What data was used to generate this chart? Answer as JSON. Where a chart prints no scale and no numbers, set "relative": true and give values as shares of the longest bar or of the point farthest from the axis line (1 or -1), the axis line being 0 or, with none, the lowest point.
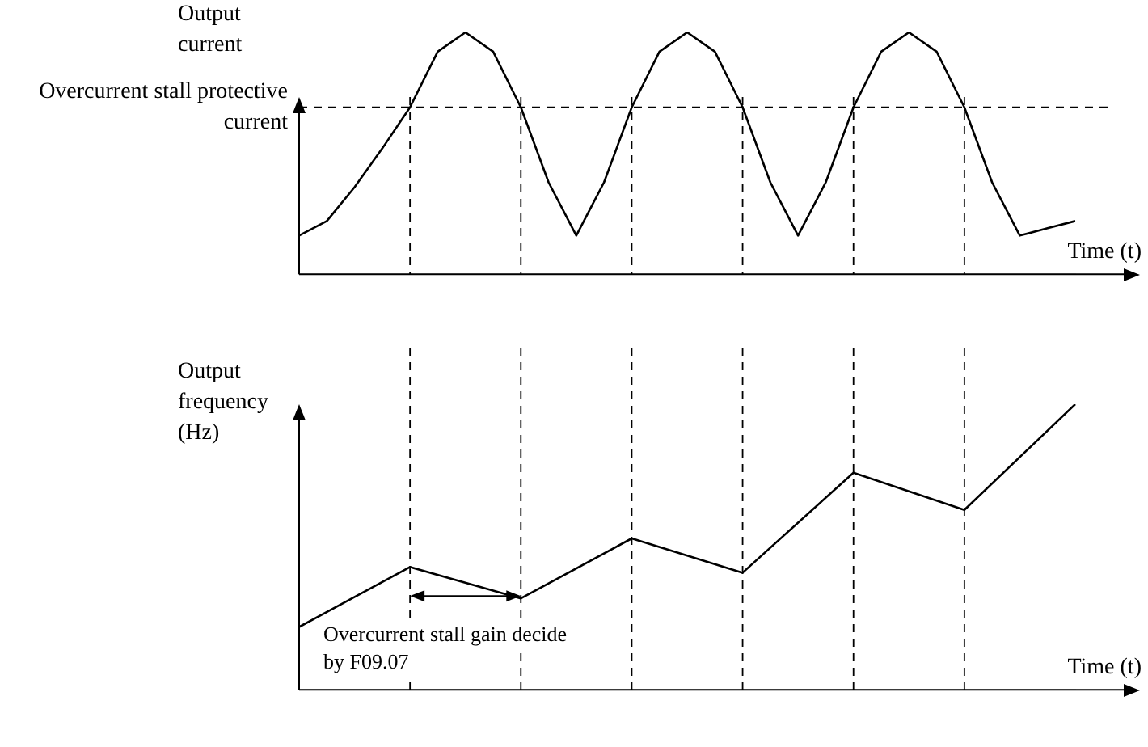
{
  "chart_data": [
    {
      "type": "line",
      "relative": true,
      "ylabel": "Output current",
      "xlabel": "Time (t)",
      "grid": "x",
      "categories": [
        null,
        null,
        null,
        null,
        null,
        null,
        null,
        null,
        null,
        null,
        null,
        null,
        null,
        null,
        null,
        null,
        null,
        null,
        null,
        null,
        null,
        null,
        null,
        null,
        null,
        null,
        null,
        null,
        null
      ],
      "series": [
        {
          "color": "#000000",
          "values": [
            0.16,
            0.22,
            0.36,
            0.52,
            0.69,
            0.92,
            1,
            0.92,
            0.69,
            0.38,
            0.16,
            0.38,
            0.69,
            0.92,
            1,
            0.92,
            0.69,
            0.38,
            0.16,
            0.38,
            0.69,
            0.92,
            1,
            0.92,
            0.69,
            0.38,
            0.16,
            0.19,
            0.22
          ]
        }
      ],
      "ref_lines": [
        {
          "axis": "y",
          "value": 0.69,
          "label": "Overcurrent stall protective current",
          "line_style": "dashed"
        }
      ]
    },
    {
      "type": "line",
      "relative": true,
      "ylabel": "Output frequency (Hz)",
      "xlabel": "Time (t)",
      "grid": "x",
      "categories": [
        null,
        null,
        null,
        null,
        null,
        null,
        null,
        null
      ],
      "series": [
        {
          "color": "#000000",
          "values": [
            0.22,
            0.43,
            0.32,
            0.53,
            0.41,
            0.76,
            0.63,
            1
          ]
        }
      ],
      "annotations": [
        "Overcurrent stall gain decide by F09.07"
      ]
    }
  ]
}
